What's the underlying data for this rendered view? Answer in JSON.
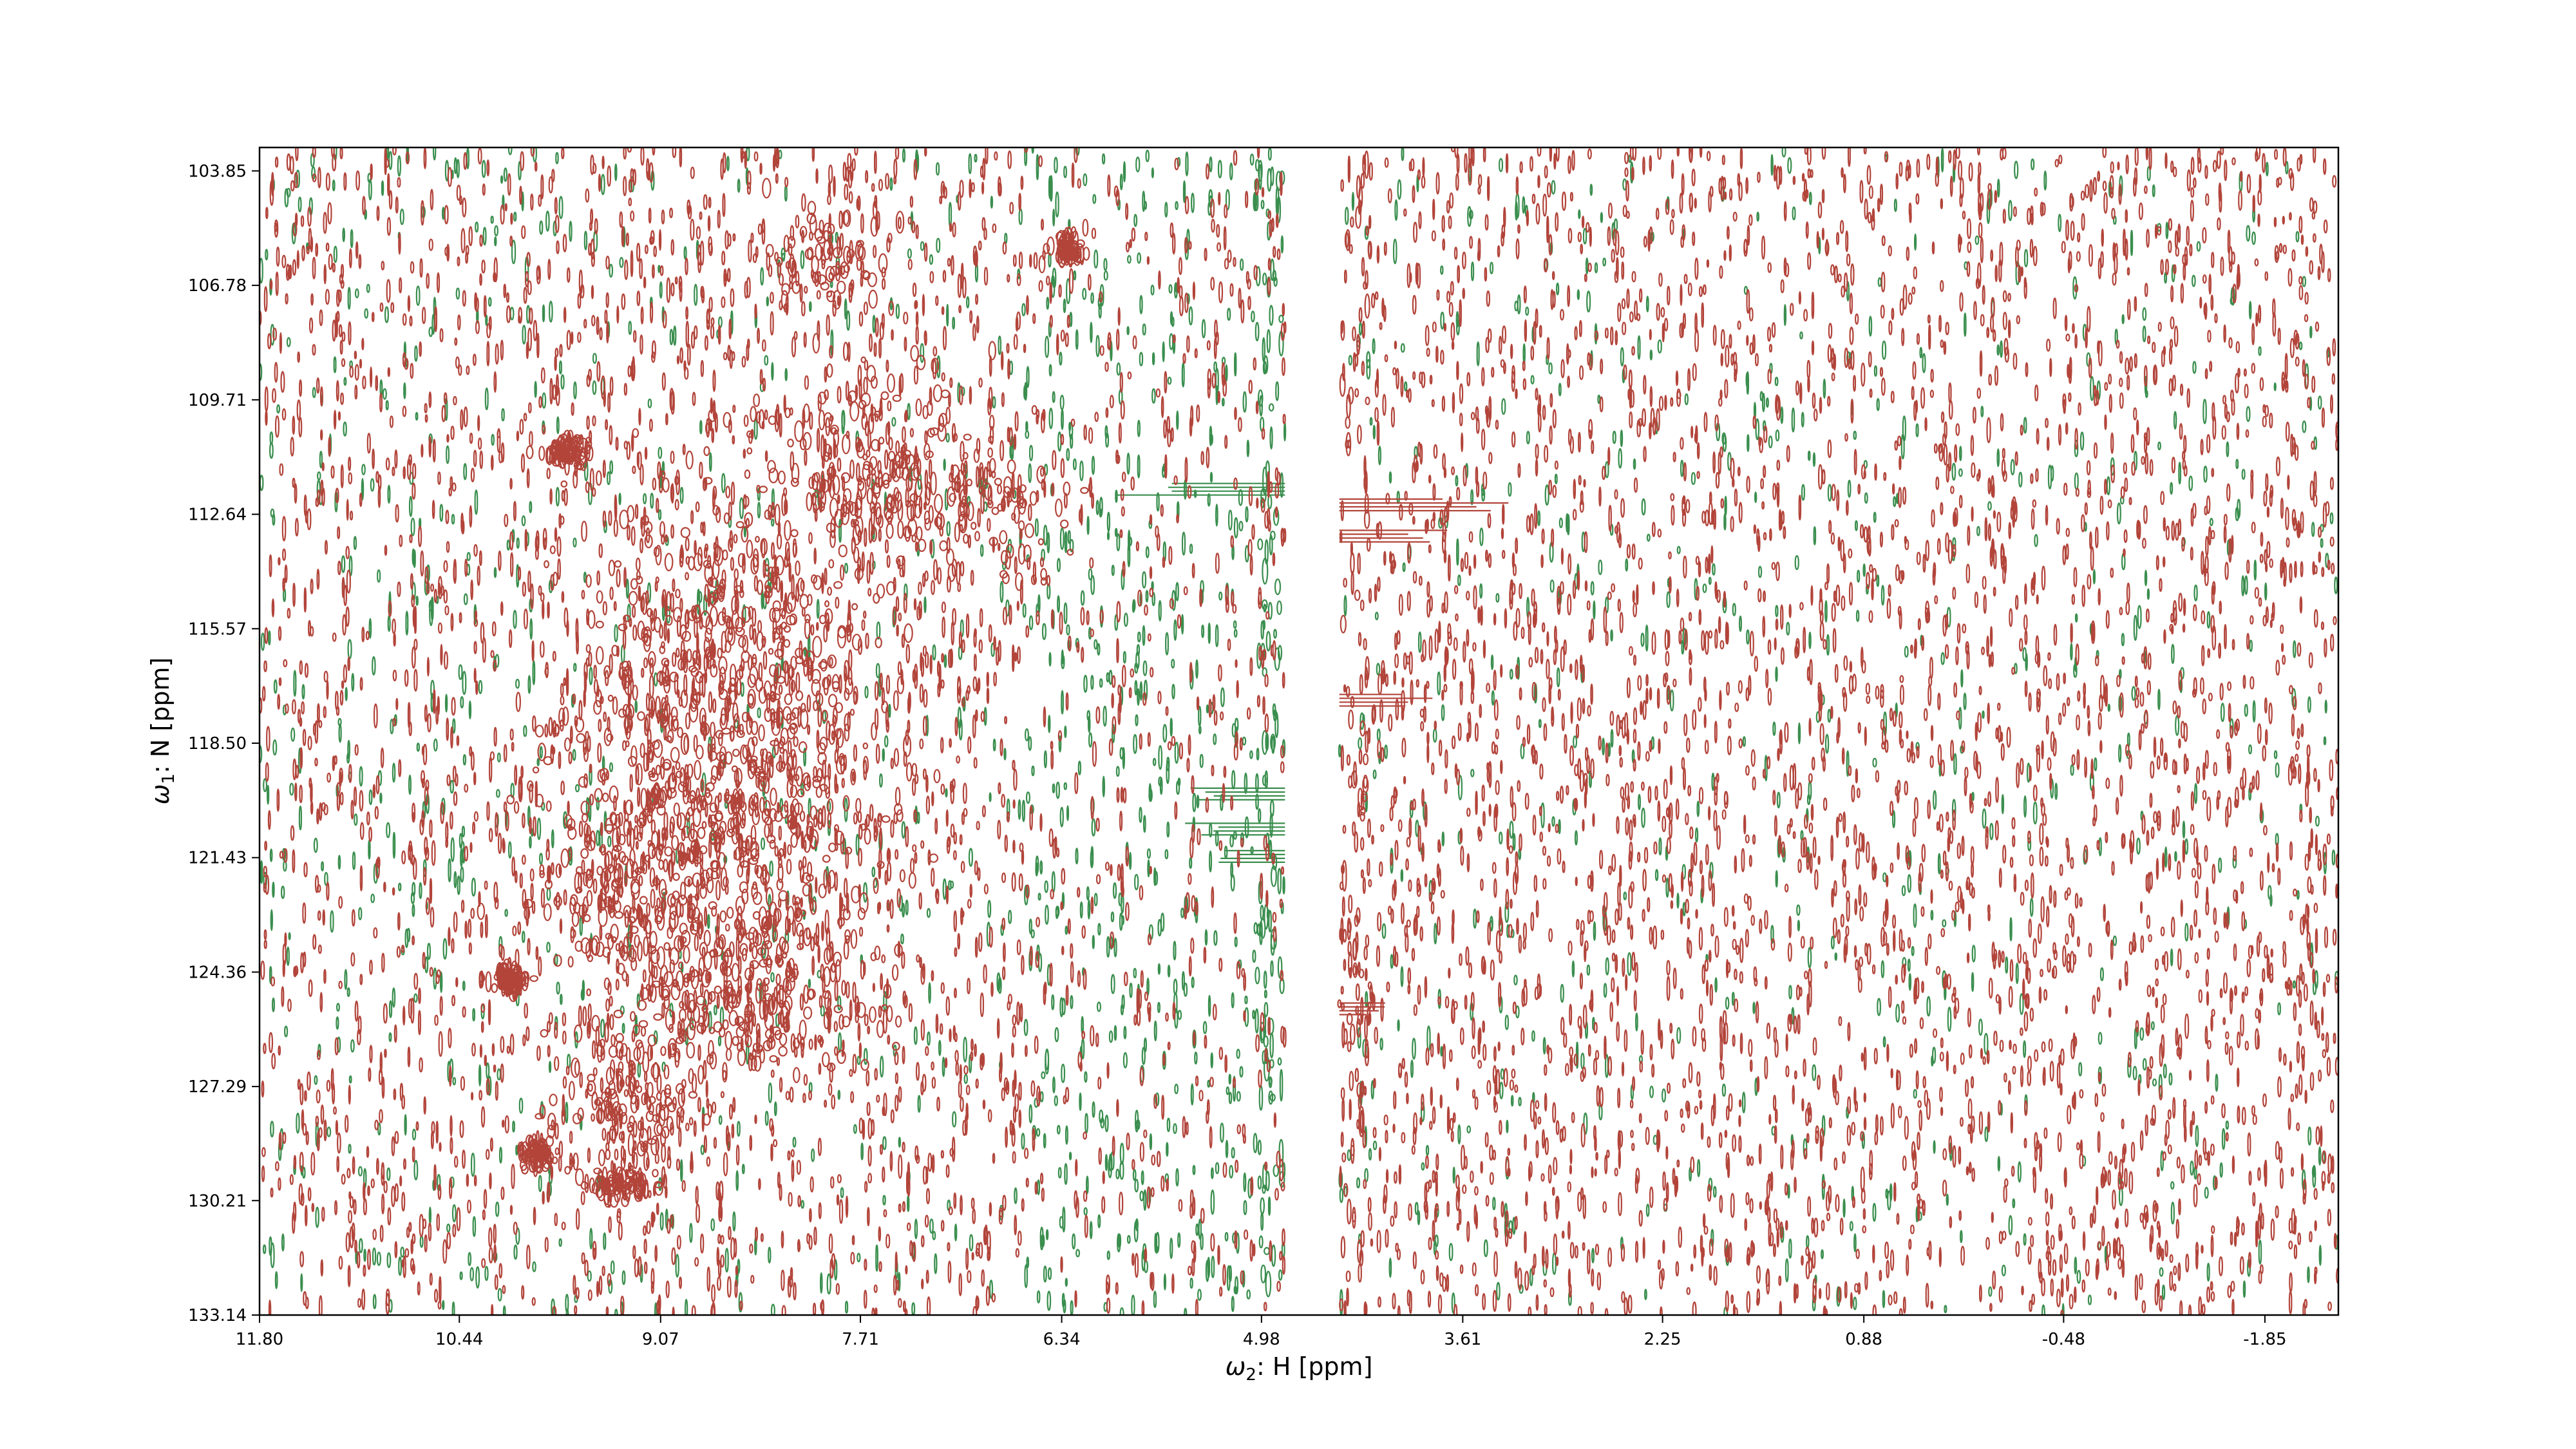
{
  "chart_data": {
    "type": "heatmap",
    "subtype": "2D NMR contour plot",
    "title": "",
    "xlabel": {
      "symbol": "ω",
      "subscript": "2",
      "text": ": H [ppm]"
    },
    "ylabel": {
      "symbol": "ω",
      "subscript": "1",
      "text": ": N [ppm]"
    },
    "x_axis": {
      "direction": "reversed",
      "range": [
        11.8,
        -2.35
      ],
      "ticks": [
        11.8,
        10.44,
        9.07,
        7.71,
        6.34,
        4.98,
        3.61,
        2.25,
        0.88,
        -0.48,
        -1.85
      ],
      "tick_labels": [
        "11.80",
        "10.44",
        "9.07",
        "7.71",
        "6.34",
        "4.98",
        "3.61",
        "2.25",
        "0.88",
        "-0.48",
        "-1.85"
      ]
    },
    "y_axis": {
      "direction": "reversed",
      "range": [
        103.25,
        133.14
      ],
      "ticks": [
        103.85,
        106.78,
        109.71,
        112.64,
        115.57,
        118.5,
        121.43,
        124.36,
        127.29,
        130.21,
        133.14
      ],
      "tick_labels": [
        "103.85",
        "106.78",
        "109.71",
        "112.64",
        "115.57",
        "118.50",
        "121.43",
        "124.36",
        "127.29",
        "130.21",
        "133.14"
      ]
    },
    "grid": false,
    "legend": "none",
    "series": [
      {
        "sign": "positive",
        "color": "#b2443a"
      },
      {
        "sign": "negative",
        "color": "#3a8e4e"
      }
    ],
    "features": {
      "water_gap": {
        "h_from": 4.82,
        "h_to": 4.45
      },
      "positive_clusters": [
        {
          "h": 8.6,
          "n": 118.5,
          "sh": 0.9,
          "sn": 5.5,
          "density": 1.0
        },
        {
          "h": 9.3,
          "n": 127.6,
          "sh": 0.45,
          "sn": 1.6,
          "density": 0.9
        },
        {
          "h": 9.3,
          "n": 122.0,
          "sh": 0.5,
          "sn": 2.0,
          "density": 0.7
        },
        {
          "h": 7.6,
          "n": 111.5,
          "sh": 0.6,
          "sn": 2.2,
          "density": 0.8
        },
        {
          "h": 7.9,
          "n": 106.0,
          "sh": 0.35,
          "sn": 1.0,
          "density": 0.6
        },
        {
          "h": 6.7,
          "n": 112.5,
          "sh": 0.4,
          "sn": 1.5,
          "density": 0.5
        },
        {
          "h": 8.5,
          "n": 125.0,
          "sh": 0.7,
          "sn": 1.8,
          "density": 0.8
        },
        {
          "h": 10.1,
          "n": 124.5,
          "sh": 0.1,
          "sn": 0.3,
          "density": 0.6
        },
        {
          "h": 9.7,
          "n": 111.0,
          "sh": 0.12,
          "sn": 0.3,
          "density": 0.6
        },
        {
          "h": 9.9,
          "n": 129.0,
          "sh": 0.1,
          "sn": 0.3,
          "density": 0.6
        },
        {
          "h": 6.3,
          "n": 105.8,
          "sh": 0.12,
          "sn": 0.3,
          "density": 0.5
        },
        {
          "h": 9.35,
          "n": 129.8,
          "sh": 0.2,
          "sn": 0.3,
          "density": 0.6
        }
      ],
      "positive_ridges": [
        {
          "n": 112.4,
          "h_from": 4.45,
          "h_to": 3.2
        },
        {
          "n": 113.2,
          "h_from": 4.45,
          "h_to": 3.6
        },
        {
          "n": 117.4,
          "h_from": 4.45,
          "h_to": 3.8
        },
        {
          "n": 125.3,
          "h_from": 4.45,
          "h_to": 4.1
        }
      ],
      "negative_ridges": [
        {
          "n": 112.0,
          "h_from": 6.3,
          "h_to": 4.82
        },
        {
          "n": 119.8,
          "h_from": 5.5,
          "h_to": 4.82
        },
        {
          "n": 120.7,
          "h_from": 5.5,
          "h_to": 4.82
        },
        {
          "n": 121.4,
          "h_from": 5.3,
          "h_to": 4.82
        }
      ]
    }
  }
}
